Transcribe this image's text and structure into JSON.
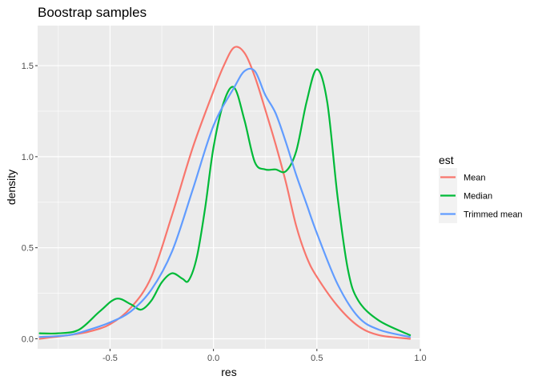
{
  "chart_data": {
    "type": "line",
    "title": "Boostrap samples",
    "xlabel": "res",
    "ylabel": "density",
    "xlim": [
      -0.85,
      1.0
    ],
    "ylim": [
      -0.055,
      1.72
    ],
    "x_ticks": [
      -0.5,
      0.0,
      0.5,
      1.0
    ],
    "x_tick_labels": [
      "-0.5",
      "0.0",
      "0.5",
      "1.0"
    ],
    "y_ticks": [
      0.0,
      0.5,
      1.0,
      1.5
    ],
    "y_tick_labels": [
      "0.0",
      "0.5",
      "1.0",
      "1.5"
    ],
    "grid": true,
    "background": "#ebebeb",
    "legend": {
      "title": "est",
      "position": "right"
    },
    "series": [
      {
        "name": "Mean",
        "color": "#f8766d",
        "x": [
          -0.84,
          -0.7,
          -0.6,
          -0.5,
          -0.4,
          -0.3,
          -0.2,
          -0.1,
          0.0,
          0.05,
          0.1,
          0.15,
          0.2,
          0.25,
          0.3,
          0.35,
          0.4,
          0.45,
          0.5,
          0.6,
          0.7,
          0.8,
          0.95
        ],
        "y": [
          0.0,
          0.02,
          0.04,
          0.08,
          0.17,
          0.34,
          0.68,
          1.05,
          1.36,
          1.5,
          1.6,
          1.57,
          1.44,
          1.26,
          1.07,
          0.86,
          0.62,
          0.45,
          0.34,
          0.18,
          0.07,
          0.02,
          0.0
        ]
      },
      {
        "name": "Median",
        "color": "#00ba38",
        "x": [
          -0.84,
          -0.75,
          -0.65,
          -0.55,
          -0.47,
          -0.4,
          -0.35,
          -0.3,
          -0.25,
          -0.2,
          -0.15,
          -0.12,
          -0.08,
          -0.04,
          0.0,
          0.05,
          0.1,
          0.15,
          0.2,
          0.25,
          0.3,
          0.35,
          0.4,
          0.45,
          0.5,
          0.55,
          0.6,
          0.65,
          0.7,
          0.8,
          0.95
        ],
        "y": [
          0.03,
          0.03,
          0.05,
          0.15,
          0.22,
          0.19,
          0.16,
          0.21,
          0.31,
          0.36,
          0.33,
          0.32,
          0.45,
          0.72,
          1.05,
          1.3,
          1.38,
          1.2,
          0.97,
          0.93,
          0.93,
          0.92,
          1.03,
          1.3,
          1.48,
          1.3,
          0.78,
          0.38,
          0.21,
          0.1,
          0.02
        ]
      },
      {
        "name": "Trimmed mean",
        "color": "#619cff",
        "x": [
          -0.84,
          -0.7,
          -0.6,
          -0.5,
          -0.4,
          -0.3,
          -0.2,
          -0.1,
          0.0,
          0.1,
          0.15,
          0.2,
          0.25,
          0.3,
          0.35,
          0.4,
          0.45,
          0.5,
          0.6,
          0.7,
          0.8,
          0.95
        ],
        "y": [
          0.01,
          0.02,
          0.05,
          0.09,
          0.15,
          0.27,
          0.48,
          0.82,
          1.17,
          1.38,
          1.47,
          1.47,
          1.34,
          1.24,
          1.08,
          0.9,
          0.74,
          0.58,
          0.3,
          0.12,
          0.05,
          0.01
        ]
      }
    ]
  }
}
